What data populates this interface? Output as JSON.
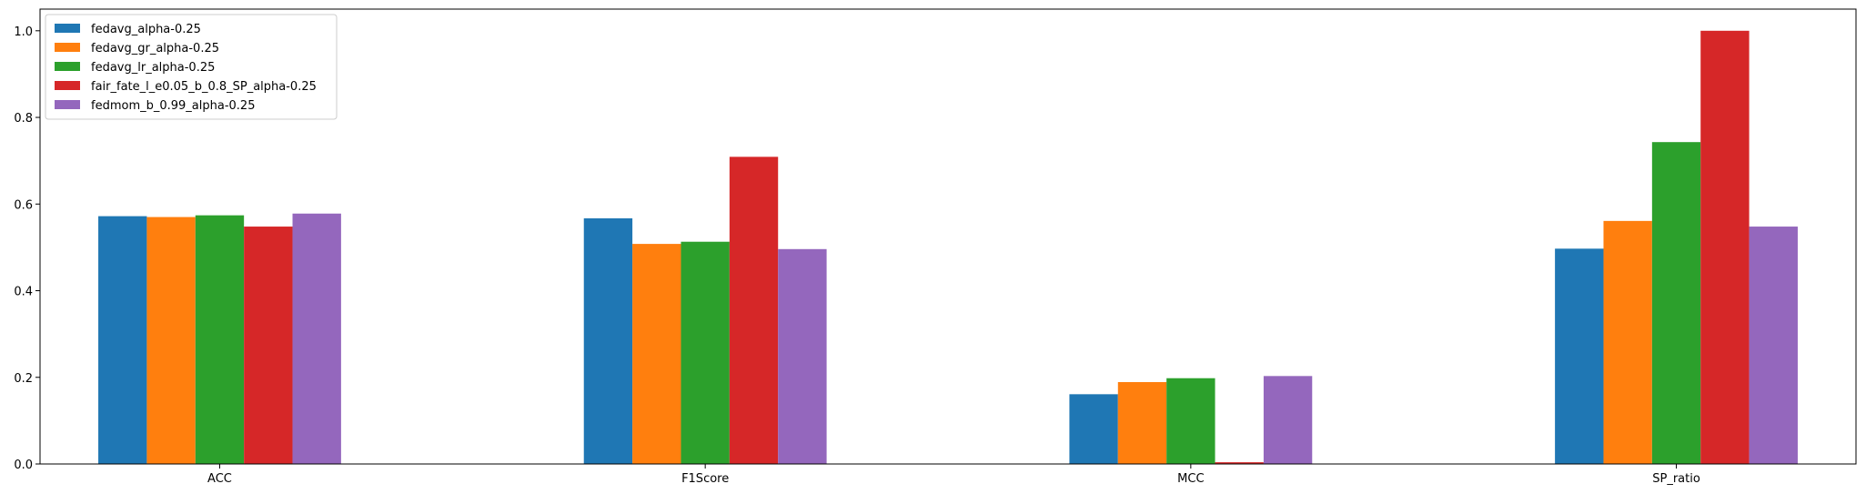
{
  "chart_data": {
    "type": "bar",
    "title": "",
    "xlabel": "",
    "ylabel": "",
    "categories": [
      "ACC",
      "F1Score",
      "MCC",
      "SP_ratio"
    ],
    "ylim": [
      0,
      1.05
    ],
    "yticks": [
      "0.0",
      "0.2",
      "0.4",
      "0.6",
      "0.8",
      "1.0"
    ],
    "grid": false,
    "legend_position": "top-left",
    "series": [
      {
        "name": "fedavg_alpha-0.25",
        "color": "#1f77b4",
        "values": [
          0.572,
          0.567,
          0.161,
          0.497
        ]
      },
      {
        "name": "fedavg_gr_alpha-0.25",
        "color": "#ff7f0e",
        "values": [
          0.57,
          0.508,
          0.189,
          0.561
        ]
      },
      {
        "name": "fedavg_lr_alpha-0.25",
        "color": "#2ca02c",
        "values": [
          0.574,
          0.513,
          0.198,
          0.743
        ]
      },
      {
        "name": "fair_fate_l_e0.05_b_0.8_SP_alpha-0.25",
        "color": "#d62728",
        "values": [
          0.548,
          0.709,
          0.004,
          1.0
        ]
      },
      {
        "name": "fedmom_b_0.99_alpha-0.25",
        "color": "#9467bd",
        "values": [
          0.578,
          0.496,
          0.203,
          0.548
        ]
      }
    ]
  }
}
